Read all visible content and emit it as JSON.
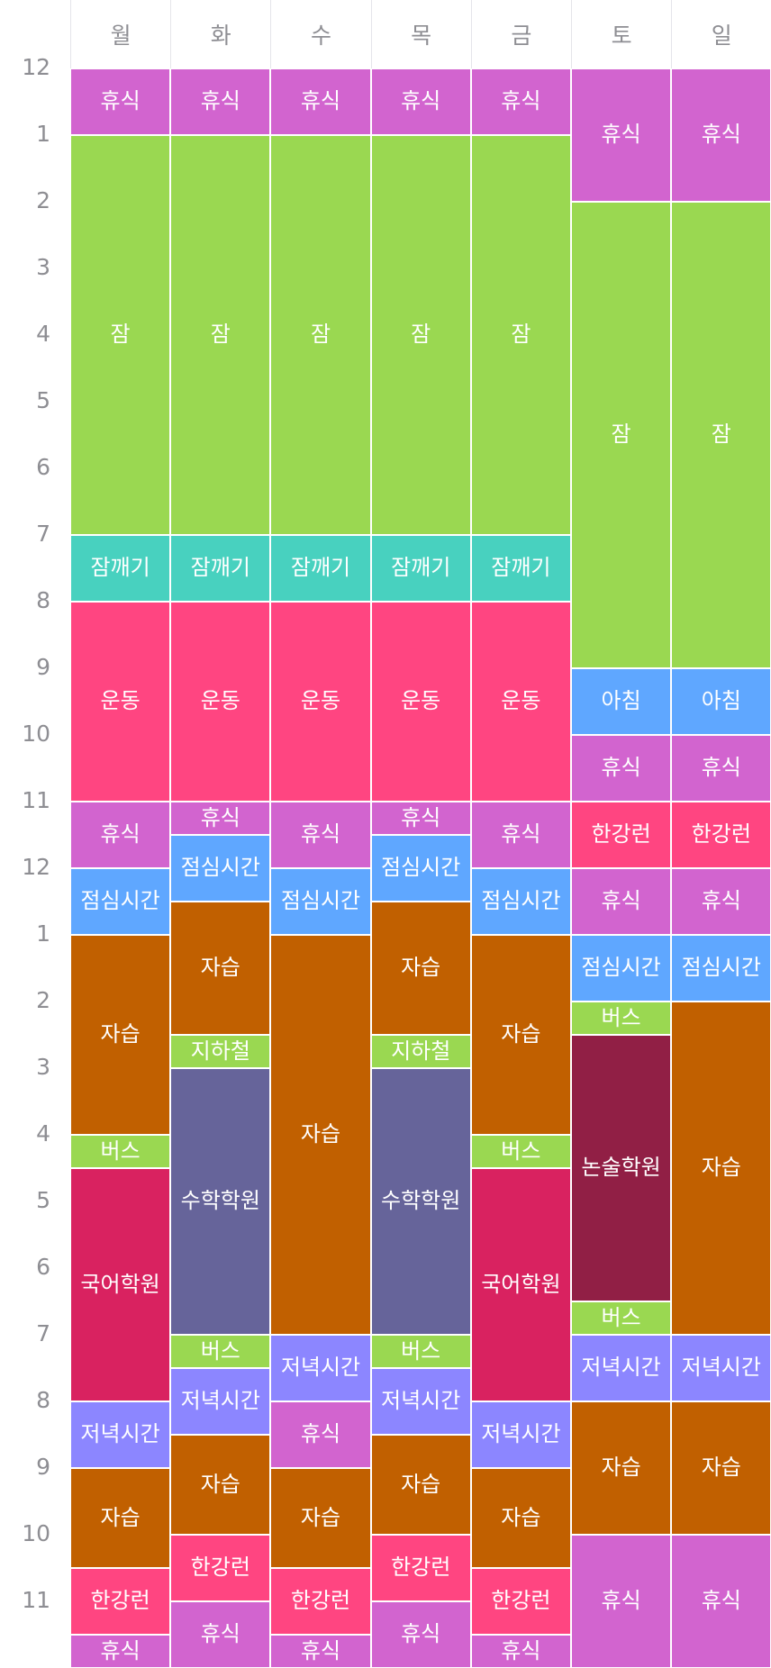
{
  "days": [
    "월",
    "화",
    "수",
    "목",
    "금",
    "토",
    "일"
  ],
  "hours": [
    "12",
    "1",
    "2",
    "3",
    "4",
    "5",
    "6",
    "7",
    "8",
    "9",
    "10",
    "11",
    "12",
    "1",
    "2",
    "3",
    "4",
    "5",
    "6",
    "7",
    "8",
    "9",
    "10",
    "11"
  ],
  "colors": {
    "rest": "#d264cf",
    "sleep": "#9ad851",
    "wake": "#48d1bf",
    "exercise": "#ff4581",
    "meal": "#5fa7ff",
    "study": "#c16000",
    "bus": "#9ad851",
    "korean_academy": "#d92260",
    "math_academy": "#66649a",
    "essay_academy": "#911f45",
    "dinner": "#8c86ff",
    "hangang": "#ff4581"
  },
  "schedule": [
    [
      {
        "label": "휴식",
        "color": "rest",
        "start": 0,
        "end": 1
      },
      {
        "label": "잠",
        "color": "sleep",
        "start": 1,
        "end": 7
      },
      {
        "label": "잠깨기",
        "color": "wake",
        "start": 7,
        "end": 8
      },
      {
        "label": "운동",
        "color": "exercise",
        "start": 8,
        "end": 11
      },
      {
        "label": "휴식",
        "color": "rest",
        "start": 11,
        "end": 12
      },
      {
        "label": "점심시간",
        "color": "meal",
        "start": 12,
        "end": 13
      },
      {
        "label": "자습",
        "color": "study",
        "start": 13,
        "end": 16
      },
      {
        "label": "버스",
        "color": "bus",
        "start": 16,
        "end": 16.5
      },
      {
        "label": "국어학원",
        "color": "korean_academy",
        "start": 16.5,
        "end": 20
      },
      {
        "label": "저녁시간",
        "color": "dinner",
        "start": 20,
        "end": 21
      },
      {
        "label": "자습",
        "color": "study",
        "start": 21,
        "end": 22.5
      },
      {
        "label": "한강런",
        "color": "hangang",
        "start": 22.5,
        "end": 23.5
      },
      {
        "label": "휴식",
        "color": "rest",
        "start": 23.5,
        "end": 24
      }
    ],
    [
      {
        "label": "휴식",
        "color": "rest",
        "start": 0,
        "end": 1
      },
      {
        "label": "잠",
        "color": "sleep",
        "start": 1,
        "end": 7
      },
      {
        "label": "잠깨기",
        "color": "wake",
        "start": 7,
        "end": 8
      },
      {
        "label": "운동",
        "color": "exercise",
        "start": 8,
        "end": 11
      },
      {
        "label": "휴식",
        "color": "rest",
        "start": 11,
        "end": 11.5
      },
      {
        "label": "점심시간",
        "color": "meal",
        "start": 11.5,
        "end": 12.5
      },
      {
        "label": "자습",
        "color": "study",
        "start": 12.5,
        "end": 14.5
      },
      {
        "label": "지하철",
        "color": "bus",
        "start": 14.5,
        "end": 15
      },
      {
        "label": "수학학원",
        "color": "math_academy",
        "start": 15,
        "end": 19
      },
      {
        "label": "버스",
        "color": "bus",
        "start": 19,
        "end": 19.5
      },
      {
        "label": "저녁시간",
        "color": "dinner",
        "start": 19.5,
        "end": 20.5
      },
      {
        "label": "자습",
        "color": "study",
        "start": 20.5,
        "end": 22
      },
      {
        "label": "한강런",
        "color": "hangang",
        "start": 22,
        "end": 23
      },
      {
        "label": "휴식",
        "color": "rest",
        "start": 23,
        "end": 24
      }
    ],
    [
      {
        "label": "휴식",
        "color": "rest",
        "start": 0,
        "end": 1
      },
      {
        "label": "잠",
        "color": "sleep",
        "start": 1,
        "end": 7
      },
      {
        "label": "잠깨기",
        "color": "wake",
        "start": 7,
        "end": 8
      },
      {
        "label": "운동",
        "color": "exercise",
        "start": 8,
        "end": 11
      },
      {
        "label": "휴식",
        "color": "rest",
        "start": 11,
        "end": 12
      },
      {
        "label": "점심시간",
        "color": "meal",
        "start": 12,
        "end": 13
      },
      {
        "label": "자습",
        "color": "study",
        "start": 13,
        "end": 19
      },
      {
        "label": "저녁시간",
        "color": "dinner",
        "start": 19,
        "end": 20
      },
      {
        "label": "휴식",
        "color": "rest",
        "start": 20,
        "end": 21
      },
      {
        "label": "자습",
        "color": "study",
        "start": 21,
        "end": 22.5
      },
      {
        "label": "한강런",
        "color": "hangang",
        "start": 22.5,
        "end": 23.5
      },
      {
        "label": "휴식",
        "color": "rest",
        "start": 23.5,
        "end": 24
      }
    ],
    [
      {
        "label": "휴식",
        "color": "rest",
        "start": 0,
        "end": 1
      },
      {
        "label": "잠",
        "color": "sleep",
        "start": 1,
        "end": 7
      },
      {
        "label": "잠깨기",
        "color": "wake",
        "start": 7,
        "end": 8
      },
      {
        "label": "운동",
        "color": "exercise",
        "start": 8,
        "end": 11
      },
      {
        "label": "휴식",
        "color": "rest",
        "start": 11,
        "end": 11.5
      },
      {
        "label": "점심시간",
        "color": "meal",
        "start": 11.5,
        "end": 12.5
      },
      {
        "label": "자습",
        "color": "study",
        "start": 12.5,
        "end": 14.5
      },
      {
        "label": "지하철",
        "color": "bus",
        "start": 14.5,
        "end": 15
      },
      {
        "label": "수학학원",
        "color": "math_academy",
        "start": 15,
        "end": 19
      },
      {
        "label": "버스",
        "color": "bus",
        "start": 19,
        "end": 19.5
      },
      {
        "label": "저녁시간",
        "color": "dinner",
        "start": 19.5,
        "end": 20.5
      },
      {
        "label": "자습",
        "color": "study",
        "start": 20.5,
        "end": 22
      },
      {
        "label": "한강런",
        "color": "hangang",
        "start": 22,
        "end": 23
      },
      {
        "label": "휴식",
        "color": "rest",
        "start": 23,
        "end": 24
      }
    ],
    [
      {
        "label": "휴식",
        "color": "rest",
        "start": 0,
        "end": 1
      },
      {
        "label": "잠",
        "color": "sleep",
        "start": 1,
        "end": 7
      },
      {
        "label": "잠깨기",
        "color": "wake",
        "start": 7,
        "end": 8
      },
      {
        "label": "운동",
        "color": "exercise",
        "start": 8,
        "end": 11
      },
      {
        "label": "휴식",
        "color": "rest",
        "start": 11,
        "end": 12
      },
      {
        "label": "점심시간",
        "color": "meal",
        "start": 12,
        "end": 13
      },
      {
        "label": "자습",
        "color": "study",
        "start": 13,
        "end": 16
      },
      {
        "label": "버스",
        "color": "bus",
        "start": 16,
        "end": 16.5
      },
      {
        "label": "국어학원",
        "color": "korean_academy",
        "start": 16.5,
        "end": 20
      },
      {
        "label": "저녁시간",
        "color": "dinner",
        "start": 20,
        "end": 21
      },
      {
        "label": "자습",
        "color": "study",
        "start": 21,
        "end": 22.5
      },
      {
        "label": "한강런",
        "color": "hangang",
        "start": 22.5,
        "end": 23.5
      },
      {
        "label": "휴식",
        "color": "rest",
        "start": 23.5,
        "end": 24
      }
    ],
    [
      {
        "label": "휴식",
        "color": "rest",
        "start": 0,
        "end": 2
      },
      {
        "label": "잠",
        "color": "sleep",
        "start": 2,
        "end": 9
      },
      {
        "label": "아침",
        "color": "meal",
        "start": 9,
        "end": 10
      },
      {
        "label": "휴식",
        "color": "rest",
        "start": 10,
        "end": 11
      },
      {
        "label": "한강런",
        "color": "hangang",
        "start": 11,
        "end": 12
      },
      {
        "label": "휴식",
        "color": "rest",
        "start": 12,
        "end": 13
      },
      {
        "label": "점심시간",
        "color": "meal",
        "start": 13,
        "end": 14
      },
      {
        "label": "버스",
        "color": "bus",
        "start": 14,
        "end": 14.5
      },
      {
        "label": "논술학원",
        "color": "essay_academy",
        "start": 14.5,
        "end": 18.5
      },
      {
        "label": "버스",
        "color": "bus",
        "start": 18.5,
        "end": 19
      },
      {
        "label": "저녁시간",
        "color": "dinner",
        "start": 19,
        "end": 20
      },
      {
        "label": "자습",
        "color": "study",
        "start": 20,
        "end": 22
      },
      {
        "label": "휴식",
        "color": "rest",
        "start": 22,
        "end": 24
      }
    ],
    [
      {
        "label": "휴식",
        "color": "rest",
        "start": 0,
        "end": 2
      },
      {
        "label": "잠",
        "color": "sleep",
        "start": 2,
        "end": 9
      },
      {
        "label": "아침",
        "color": "meal",
        "start": 9,
        "end": 10
      },
      {
        "label": "휴식",
        "color": "rest",
        "start": 10,
        "end": 11
      },
      {
        "label": "한강런",
        "color": "hangang",
        "start": 11,
        "end": 12
      },
      {
        "label": "휴식",
        "color": "rest",
        "start": 12,
        "end": 13
      },
      {
        "label": "점심시간",
        "color": "meal",
        "start": 13,
        "end": 14
      },
      {
        "label": "자습",
        "color": "study",
        "start": 14,
        "end": 19
      },
      {
        "label": "저녁시간",
        "color": "dinner",
        "start": 19,
        "end": 20
      },
      {
        "label": "자습",
        "color": "study",
        "start": 20,
        "end": 22
      },
      {
        "label": "휴식",
        "color": "rest",
        "start": 22,
        "end": 24
      }
    ]
  ]
}
